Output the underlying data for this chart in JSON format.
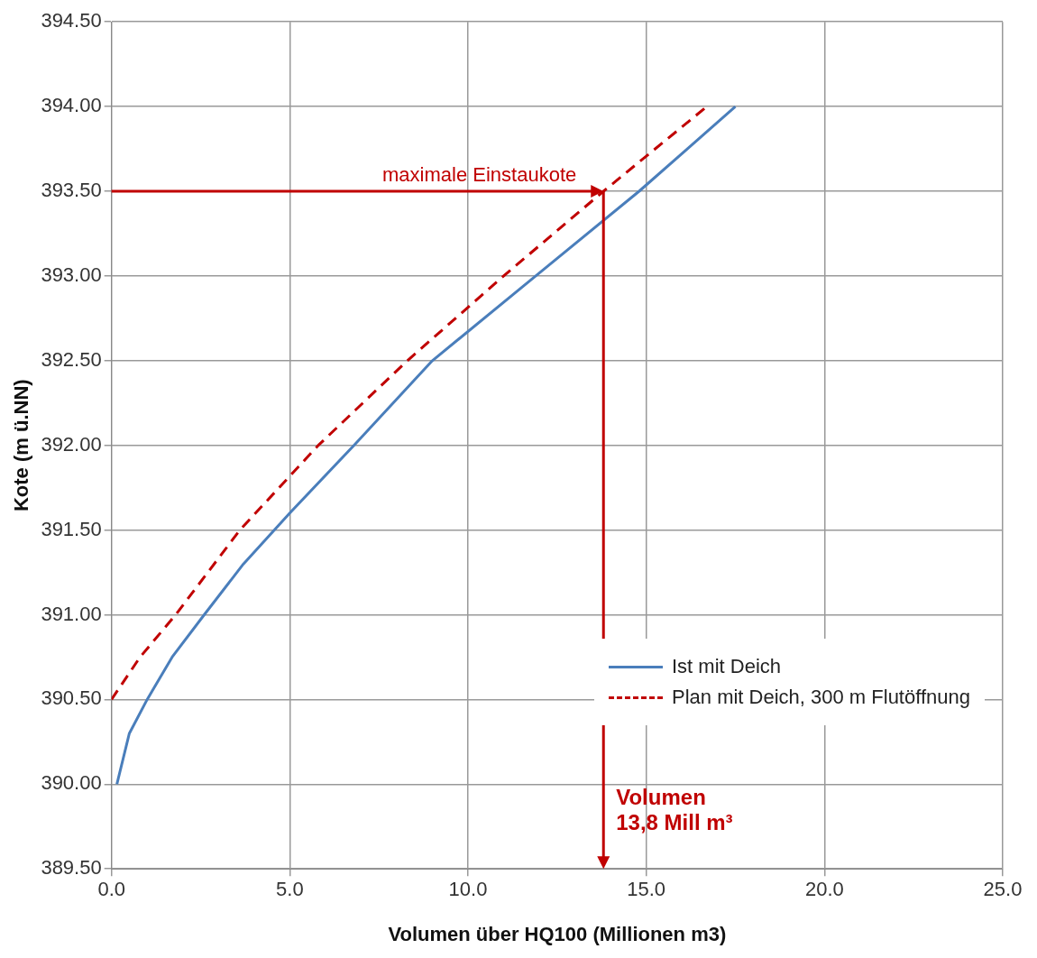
{
  "chart_data": {
    "type": "line",
    "xlabel": "Volumen über HQ100 (Millionen m3)",
    "ylabel": "Kote (m ü.NN)",
    "xlim": [
      0,
      25
    ],
    "xticks": [
      {
        "value": 0,
        "label": "0.0"
      },
      {
        "value": 5,
        "label": "5.0"
      },
      {
        "value": 10,
        "label": "10.0"
      },
      {
        "value": 15,
        "label": "15.0"
      },
      {
        "value": 20,
        "label": "20.0"
      },
      {
        "value": 25,
        "label": "25.0"
      }
    ],
    "ylim": [
      389.5,
      394.5
    ],
    "yticks": [
      {
        "value": 389.5,
        "label": "389.50"
      },
      {
        "value": 390,
        "label": "390.00"
      },
      {
        "value": 390.5,
        "label": "390.50"
      },
      {
        "value": 391,
        "label": "391.00"
      },
      {
        "value": 391.5,
        "label": "391.50"
      },
      {
        "value": 392,
        "label": "392.00"
      },
      {
        "value": 392.5,
        "label": "392.50"
      },
      {
        "value": 393,
        "label": "393.00"
      },
      {
        "value": 393.5,
        "label": "393.50"
      },
      {
        "value": 394,
        "label": "394.00"
      },
      {
        "value": 394.5,
        "label": "394.50"
      }
    ],
    "grid": true,
    "legend": "bottom right",
    "marker": "none",
    "series": [
      {
        "name": "Ist mit Deich",
        "color": "#4a7ebb",
        "line_style": "solid",
        "x": [
          0.15,
          0.5,
          1.0,
          1.7,
          2.6,
          3.7,
          5.0,
          6.8,
          9.0,
          11.9,
          14.8,
          17.5
        ],
        "values": [
          390.0,
          390.3,
          390.5,
          390.75,
          391.0,
          391.3,
          391.6,
          392.0,
          392.5,
          393.0,
          393.5,
          394.0
        ]
      },
      {
        "name": "Plan mit Deich, 300 m Flutöffnung",
        "color": "#c00000",
        "line_style": "dashed",
        "x": [
          0,
          0.8,
          1.8,
          3.6,
          5.8,
          8.3,
          11.0,
          13.8,
          16.7
        ],
        "values": [
          390.5,
          390.75,
          391.0,
          391.5,
          392.0,
          392.5,
          393.0,
          393.5,
          394.0
        ]
      }
    ],
    "annotations": [
      {
        "text": "maximale Einstaukote",
        "x": 13.8,
        "y": 393.5
      },
      "Volumen 13,8 Mill m³"
    ]
  }
}
